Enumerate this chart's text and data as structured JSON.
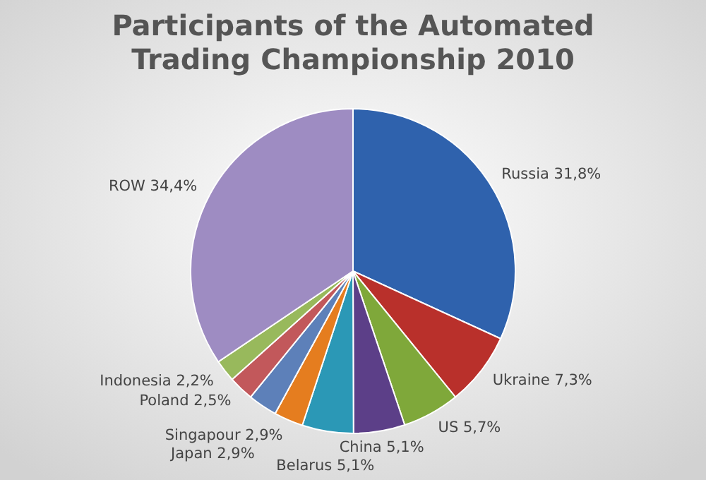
{
  "chart_data": {
    "type": "pie",
    "title": "Participants of the Automated Trading Championship 2010",
    "categories": [
      "Russia",
      "Ukraine",
      "US",
      "China",
      "Belarus",
      "Singapour",
      "Japan",
      "Poland",
      "Indonesia",
      "ROW"
    ],
    "values": [
      31.8,
      7.3,
      5.7,
      5.1,
      5.1,
      2.9,
      2.9,
      2.5,
      2.2,
      34.4
    ],
    "value_labels": [
      "31,8%",
      "7,3%",
      "5,7%",
      "5,1%",
      "5,1%",
      "2,9%",
      "2,9%",
      "2,5%",
      "2,2%",
      "34,4%"
    ],
    "colors": [
      "#2f62ad",
      "#b9302b",
      "#7fa83a",
      "#5c3f88",
      "#2b98b6",
      "#e57d1f",
      "#5d80b9",
      "#c2585b",
      "#98b95c",
      "#9e8cc2"
    ]
  }
}
